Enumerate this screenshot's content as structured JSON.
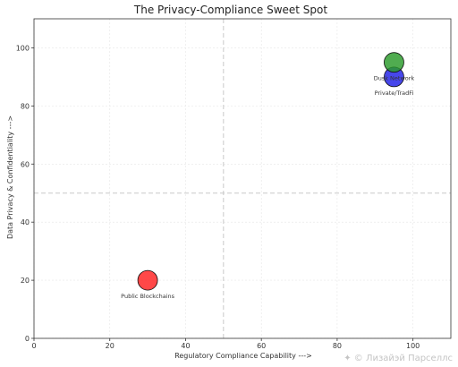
{
  "watermark": "Лизайэй Парселлс",
  "chart_data": {
    "type": "scatter",
    "title": "The Privacy-Compliance Sweet Spot",
    "xlabel": "Regulatory Compliance Capability --->",
    "ylabel": "Data Privacy & Confidentiality --->",
    "xlim": [
      0,
      110
    ],
    "ylim": [
      0,
      110
    ],
    "xticks": [
      0,
      20,
      40,
      60,
      80,
      100
    ],
    "yticks": [
      0,
      20,
      40,
      60,
      80,
      100
    ],
    "grid": true,
    "reference_lines": {
      "x": 50,
      "y": 50
    },
    "points": [
      {
        "label": "Public Blockchains",
        "x": 30,
        "y": 20,
        "color": "#ff2020"
      },
      {
        "label": "Private/TradFi",
        "x": 95,
        "y": 90,
        "color": "#1f1fe6"
      },
      {
        "label": "Dusk Network",
        "x": 95,
        "y": 95,
        "color": "#2a9a2a"
      }
    ]
  }
}
